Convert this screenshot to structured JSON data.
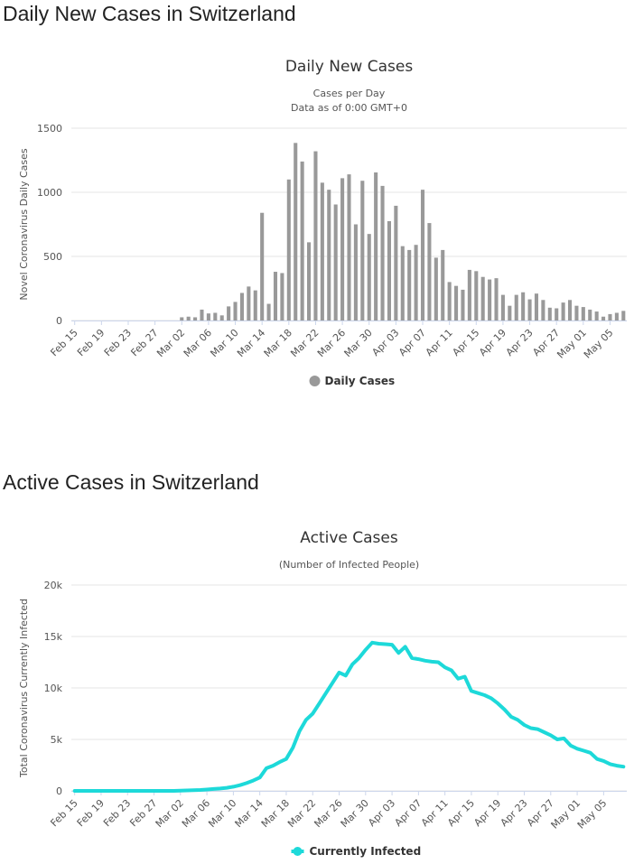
{
  "section1": {
    "title": "Daily New Cases in Switzerland"
  },
  "section2": {
    "title": "Active Cases in Switzerland"
  },
  "chart_data": [
    {
      "type": "bar",
      "title": "Daily New Cases",
      "subtitle_lines": [
        "Cases per Day",
        "Data as of 0:00 GMT+0"
      ],
      "ylabel": "Novel Coronavirus Daily Cases",
      "ylim": [
        0,
        1500
      ],
      "yticks": [
        0,
        500,
        1000,
        1500
      ],
      "ytick_labels": [
        "0",
        "500",
        "1000",
        "1500"
      ],
      "grid": true,
      "color": "#999999",
      "legend": {
        "label": "Daily Cases",
        "placement": "bottom-center"
      },
      "x_tick_labels": [
        "Feb 15",
        "Feb 19",
        "Feb 23",
        "Feb 27",
        "Mar 02",
        "Mar 06",
        "Mar 10",
        "Mar 14",
        "Mar 18",
        "Mar 22",
        "Mar 26",
        "Mar 30",
        "Apr 03",
        "Apr 07",
        "Apr 11",
        "Apr 15",
        "Apr 19",
        "Apr 23",
        "Apr 27",
        "May 01",
        "May 05"
      ],
      "x_tick_every": 4,
      "x_start": "Feb 15",
      "x_end": "May 08",
      "values": [
        0,
        0,
        0,
        0,
        0,
        0,
        0,
        0,
        0,
        0,
        0,
        0,
        0,
        0,
        0,
        0,
        25,
        30,
        25,
        85,
        55,
        60,
        40,
        110,
        145,
        215,
        265,
        235,
        840,
        130,
        380,
        370,
        1100,
        1385,
        1240,
        610,
        1320,
        1075,
        1020,
        905,
        1110,
        1140,
        750,
        1090,
        675,
        1155,
        1050,
        775,
        895,
        580,
        550,
        590,
        1020,
        760,
        490,
        550,
        300,
        270,
        240,
        395,
        385,
        340,
        320,
        330,
        200,
        115,
        200,
        220,
        165,
        210,
        160,
        100,
        95,
        140,
        160,
        115,
        105,
        85,
        70,
        30,
        50,
        60,
        75
      ]
    },
    {
      "type": "line",
      "title": "Active Cases",
      "subtitle_lines": [
        "(Number of Infected People)"
      ],
      "ylabel": "Total Coronavirus Currently Infected",
      "ylim": [
        0,
        20000
      ],
      "yticks": [
        0,
        5000,
        10000,
        15000,
        20000
      ],
      "ytick_labels": [
        "0",
        "5k",
        "10k",
        "15k",
        "20k"
      ],
      "grid": true,
      "color": "#1dd9d9",
      "legend": {
        "label": "Currently Infected",
        "placement": "bottom-center"
      },
      "x_tick_labels": [
        "Feb 15",
        "Feb 19",
        "Feb 23",
        "Feb 27",
        "Mar 02",
        "Mar 06",
        "Mar 10",
        "Mar 14",
        "Mar 18",
        "Mar 22",
        "Mar 26",
        "Mar 30",
        "Apr 03",
        "Apr 07",
        "Apr 11",
        "Apr 15",
        "Apr 19",
        "Apr 23",
        "Apr 27",
        "May 01",
        "May 05"
      ],
      "x_tick_every": 4,
      "x_start": "Feb 15",
      "x_end": "May 08",
      "values": [
        0,
        0,
        0,
        0,
        0,
        0,
        0,
        0,
        0,
        0,
        0,
        0,
        0,
        0,
        0,
        0,
        20,
        40,
        60,
        90,
        130,
        180,
        230,
        300,
        400,
        550,
        750,
        1000,
        1300,
        2200,
        2450,
        2800,
        3100,
        4200,
        5800,
        6900,
        7500,
        8500,
        9500,
        10500,
        11500,
        11200,
        12300,
        12900,
        13700,
        14400,
        14300,
        14250,
        14200,
        13400,
        14000,
        12900,
        12800,
        12650,
        12550,
        12500,
        12000,
        11700,
        10900,
        11100,
        9700,
        9500,
        9300,
        9000,
        8500,
        7900,
        7200,
        6900,
        6400,
        6100,
        6000,
        5700,
        5400,
        5000,
        5100,
        4400,
        4100,
        3900,
        3700,
        3100,
        2900,
        2600,
        2450,
        2350
      ]
    }
  ]
}
